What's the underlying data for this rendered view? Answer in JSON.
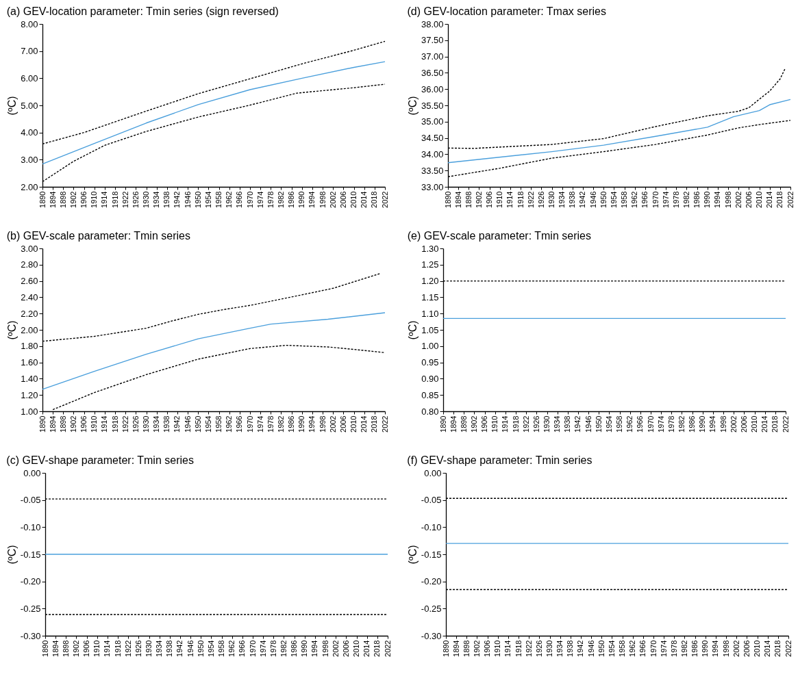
{
  "chart_data": [
    {
      "type": "line",
      "title": "(a) GEV-location parameter: Tmin series (sign reversed)",
      "ylabel": "(ºC)",
      "xlim": [
        1890,
        2022
      ],
      "xticks": [
        1890,
        1894,
        1898,
        1902,
        1906,
        1910,
        1914,
        1918,
        1922,
        1926,
        1930,
        1934,
        1938,
        1942,
        1946,
        1950,
        1954,
        1958,
        1962,
        1966,
        1970,
        1974,
        1978,
        1982,
        1986,
        1990,
        1994,
        1998,
        2002,
        2006,
        2010,
        2014,
        2018,
        2022
      ],
      "ylim": [
        2,
        8
      ],
      "yticks": [
        {
          "value": 2,
          "label": "2.00"
        },
        {
          "value": 3,
          "label": "3.00"
        },
        {
          "value": 4,
          "label": "4.00"
        },
        {
          "value": 5,
          "label": "5.00"
        },
        {
          "value": 6,
          "label": "6.00"
        },
        {
          "value": 7,
          "label": "7.00"
        },
        {
          "value": 8,
          "label": "8.00"
        }
      ],
      "series": [
        {
          "color": "#4a9fdc",
          "line_style": "solid",
          "x": [
            1890,
            1910,
            1930,
            1950,
            1970,
            1990,
            2010,
            2022
          ],
          "values": [
            2.84,
            3.6,
            4.35,
            5.03,
            5.58,
            6.0,
            6.4,
            6.61
          ]
        },
        {
          "color": "#000000",
          "line_style": "dashed",
          "x": [
            1890,
            1906,
            1930,
            1950,
            1970,
            1990,
            2010,
            2022
          ],
          "values": [
            3.58,
            4.0,
            4.79,
            5.43,
            5.98,
            6.53,
            7.03,
            7.36
          ]
        },
        {
          "color": "#000000",
          "line_style": "dashed",
          "x": [
            1890,
            1902,
            1914,
            1930,
            1950,
            1970,
            1988,
            1990,
            2010,
            2022
          ],
          "values": [
            2.19,
            2.94,
            3.53,
            4.04,
            4.57,
            5.01,
            5.45,
            5.47,
            5.65,
            5.78
          ]
        }
      ]
    },
    {
      "type": "line",
      "title": "(b) GEV-scale parameter: Tmin series",
      "ylabel": "(ºC)",
      "xlim": [
        1890,
        2022
      ],
      "xticks": [
        1890,
        1894,
        1898,
        1902,
        1906,
        1910,
        1914,
        1918,
        1922,
        1926,
        1930,
        1934,
        1938,
        1942,
        1946,
        1950,
        1954,
        1958,
        1962,
        1966,
        1970,
        1974,
        1978,
        1982,
        1986,
        1990,
        1994,
        1998,
        2002,
        2006,
        2010,
        2014,
        2018,
        2022
      ],
      "ylim": [
        1,
        3
      ],
      "yticks": [
        {
          "value": 1,
          "label": "1.00"
        },
        {
          "value": 1.2,
          "label": "1.20"
        },
        {
          "value": 1.4,
          "label": "1.40"
        },
        {
          "value": 1.6,
          "label": "1.60"
        },
        {
          "value": 1.8,
          "label": "1.80"
        },
        {
          "value": 2,
          "label": "2.00"
        },
        {
          "value": 2.2,
          "label": "2.20"
        },
        {
          "value": 2.4,
          "label": "2.40"
        },
        {
          "value": 2.6,
          "label": "2.60"
        },
        {
          "value": 2.8,
          "label": "2.80"
        },
        {
          "value": 3,
          "label": "3.00"
        }
      ],
      "series": [
        {
          "color": "#4a9fdc",
          "line_style": "solid",
          "x": [
            1890,
            1910,
            1930,
            1950,
            1970,
            1978,
            2000,
            2022
          ],
          "values": [
            1.27,
            1.49,
            1.7,
            1.89,
            2.02,
            2.07,
            2.13,
            2.21
          ]
        },
        {
          "color": "#000000",
          "line_style": "dashed",
          "x": [
            1890,
            1910,
            1930,
            1940,
            1950,
            1960,
            1970,
            1990,
            2002,
            2010,
            2020
          ],
          "values": [
            1.86,
            1.92,
            2.02,
            2.11,
            2.19,
            2.25,
            2.3,
            2.43,
            2.51,
            2.59,
            2.69
          ]
        },
        {
          "color": "#000000",
          "line_style": "dashed",
          "x": [
            1894,
            1910,
            1930,
            1950,
            1970,
            1984,
            2000,
            2010,
            2022
          ],
          "values": [
            1.02,
            1.23,
            1.45,
            1.64,
            1.77,
            1.81,
            1.79,
            1.76,
            1.72
          ]
        }
      ]
    },
    {
      "type": "line",
      "title": "(c) GEV-shape parameter: Tmin series",
      "ylabel": "(ºC)",
      "xlim": [
        1890,
        2022
      ],
      "xticks": [
        1890,
        1894,
        1898,
        1902,
        1906,
        1910,
        1914,
        1918,
        1922,
        1926,
        1930,
        1934,
        1938,
        1942,
        1946,
        1950,
        1954,
        1958,
        1962,
        1966,
        1970,
        1974,
        1978,
        1982,
        1986,
        1990,
        1994,
        1998,
        2002,
        2006,
        2010,
        2014,
        2018,
        2022
      ],
      "ylim": [
        -0.3,
        0
      ],
      "yticks": [
        {
          "value": -0.3,
          "label": "-0.30"
        },
        {
          "value": -0.25,
          "label": "-0.25"
        },
        {
          "value": -0.2,
          "label": "-0.20"
        },
        {
          "value": -0.15,
          "label": "-0.15"
        },
        {
          "value": -0.1,
          "label": "-0.10"
        },
        {
          "value": -0.05,
          "label": "-0.05"
        },
        {
          "value": 0,
          "label": "0.00"
        }
      ],
      "series": [
        {
          "color": "#4a9fdc",
          "line_style": "solid",
          "x": [
            1890,
            2022
          ],
          "values": [
            -0.15,
            -0.15
          ]
        },
        {
          "color": "#000000",
          "line_style": "dashed",
          "x": [
            1890,
            2022
          ],
          "values": [
            -0.048,
            -0.048
          ]
        },
        {
          "color": "#000000",
          "line_style": "dashed",
          "x": [
            1890,
            2022
          ],
          "values": [
            -0.261,
            -0.261
          ]
        }
      ]
    },
    {
      "type": "line",
      "title": "(d) GEV-location parameter: Tmax series",
      "ylabel": "(ºC)",
      "xlim": [
        1890,
        2022
      ],
      "xticks": [
        1890,
        1894,
        1898,
        1902,
        1906,
        1910,
        1914,
        1918,
        1922,
        1926,
        1930,
        1934,
        1938,
        1942,
        1946,
        1950,
        1954,
        1958,
        1962,
        1966,
        1970,
        1974,
        1978,
        1982,
        1986,
        1990,
        1994,
        1998,
        2002,
        2006,
        2010,
        2014,
        2018,
        2022
      ],
      "ylim": [
        33,
        38
      ],
      "yticks": [
        {
          "value": 33,
          "label": "33.00"
        },
        {
          "value": 33.5,
          "label": "33.50"
        },
        {
          "value": 34,
          "label": "34.00"
        },
        {
          "value": 34.5,
          "label": "34.50"
        },
        {
          "value": 35,
          "label": "35.00"
        },
        {
          "value": 35.5,
          "label": "35.50"
        },
        {
          "value": 36,
          "label": "36.00"
        },
        {
          "value": 36.5,
          "label": "36.50"
        },
        {
          "value": 37,
          "label": "37.00"
        },
        {
          "value": 37.5,
          "label": "37.50"
        },
        {
          "value": 38,
          "label": "38.00"
        }
      ],
      "series": [
        {
          "color": "#4a9fdc",
          "line_style": "solid",
          "x": [
            1890,
            1930,
            1950,
            1970,
            1990,
            2000,
            2010,
            2014,
            2022
          ],
          "values": [
            33.74,
            34.08,
            34.28,
            34.55,
            34.83,
            35.15,
            35.34,
            35.52,
            35.68
          ]
        },
        {
          "color": "#000000",
          "line_style": "dashed",
          "x": [
            1890,
            1900,
            1930,
            1950,
            1970,
            1990,
            2002,
            2006,
            2010,
            2014,
            2018,
            2020
          ],
          "values": [
            34.19,
            34.18,
            34.3,
            34.48,
            34.85,
            35.18,
            35.32,
            35.43,
            35.69,
            35.94,
            36.31,
            36.64
          ]
        },
        {
          "color": "#000000",
          "line_style": "dashed",
          "x": [
            1890,
            1910,
            1930,
            1950,
            1970,
            1990,
            2002,
            2010,
            2022
          ],
          "values": [
            33.31,
            33.57,
            33.88,
            34.08,
            34.3,
            34.59,
            34.81,
            34.91,
            35.04
          ]
        }
      ]
    },
    {
      "type": "line",
      "title": "(e) GEV-scale parameter: Tmin series",
      "ylabel": "(ºC)",
      "xlim": [
        1890,
        2022
      ],
      "xticks": [
        1890,
        1894,
        1898,
        1902,
        1906,
        1910,
        1914,
        1918,
        1922,
        1926,
        1930,
        1934,
        1938,
        1942,
        1946,
        1950,
        1954,
        1958,
        1962,
        1966,
        1970,
        1974,
        1978,
        1982,
        1986,
        1990,
        1994,
        1998,
        2002,
        2006,
        2010,
        2014,
        2018,
        2022
      ],
      "ylim": [
        0.8,
        1.3
      ],
      "yticks": [
        {
          "value": 0.8,
          "label": "0.80"
        },
        {
          "value": 0.85,
          "label": "0.85"
        },
        {
          "value": 0.9,
          "label": "0.90"
        },
        {
          "value": 0.95,
          "label": "0.95"
        },
        {
          "value": 1,
          "label": "1.00"
        },
        {
          "value": 1.05,
          "label": "1.05"
        },
        {
          "value": 1.1,
          "label": "1.10"
        },
        {
          "value": 1.15,
          "label": "1.15"
        },
        {
          "value": 1.2,
          "label": "1.20"
        },
        {
          "value": 1.25,
          "label": "1.25"
        },
        {
          "value": 1.3,
          "label": "1.30"
        }
      ],
      "series": [
        {
          "color": "#4a9fdc",
          "line_style": "solid",
          "x": [
            1890,
            2022
          ],
          "values": [
            1.085,
            1.085
          ]
        },
        {
          "color": "#000000",
          "line_style": "dashed",
          "x": [
            1890,
            2022
          ],
          "values": [
            1.2,
            1.2
          ]
        }
      ]
    },
    {
      "type": "line",
      "title": "(f) GEV-shape parameter: Tmin series",
      "ylabel": "(ºC)",
      "xlim": [
        1890,
        2022
      ],
      "xticks": [
        1890,
        1894,
        1898,
        1902,
        1906,
        1910,
        1914,
        1918,
        1922,
        1926,
        1930,
        1934,
        1938,
        1942,
        1946,
        1950,
        1954,
        1958,
        1962,
        1966,
        1970,
        1974,
        1978,
        1982,
        1986,
        1990,
        1994,
        1998,
        2002,
        2006,
        2010,
        2014,
        2018,
        2022
      ],
      "ylim": [
        -0.3,
        0
      ],
      "yticks": [
        {
          "value": -0.3,
          "label": "-0.30"
        },
        {
          "value": -0.25,
          "label": "-0.25"
        },
        {
          "value": -0.2,
          "label": "-0.20"
        },
        {
          "value": -0.15,
          "label": "-0.15"
        },
        {
          "value": -0.1,
          "label": "-0.10"
        },
        {
          "value": -0.05,
          "label": "-0.05"
        },
        {
          "value": 0,
          "label": "0.00"
        }
      ],
      "series": [
        {
          "color": "#4a9fdc",
          "line_style": "solid",
          "x": [
            1890,
            2022
          ],
          "values": [
            -0.13,
            -0.13
          ]
        },
        {
          "color": "#000000",
          "line_style": "dashed",
          "x": [
            1890,
            2022
          ],
          "values": [
            -0.047,
            -0.047
          ]
        },
        {
          "color": "#000000",
          "line_style": "dashed",
          "x": [
            1890,
            2022
          ],
          "values": [
            -0.215,
            -0.215
          ]
        }
      ]
    }
  ]
}
